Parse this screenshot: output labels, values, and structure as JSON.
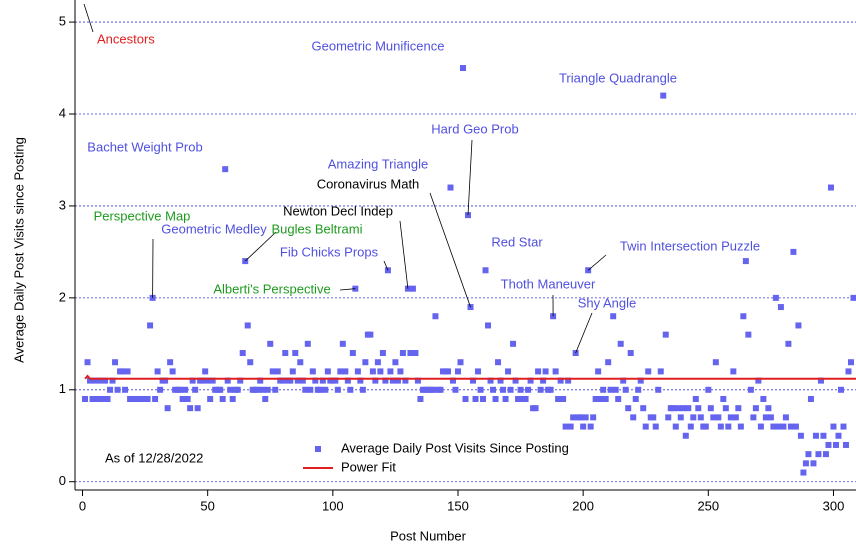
{
  "chart_data": {
    "type": "scatter",
    "xlabel": "Post Number",
    "ylabel": "Average Daily Post Visits since Posting",
    "note": "As of 12/28/2022",
    "xlim": [
      -3,
      309
    ],
    "ylim": [
      -0.09,
      5.24
    ],
    "xticks": [
      0,
      50,
      100,
      150,
      200,
      250,
      300
    ],
    "yticks": [
      0,
      1,
      2,
      3,
      4,
      5
    ],
    "grid": true,
    "x": [
      1,
      2,
      3,
      4,
      5,
      6,
      7,
      8,
      9,
      10,
      11,
      12,
      13,
      14,
      15,
      16,
      17,
      18,
      19,
      20,
      21,
      22,
      23,
      24,
      25,
      26,
      27,
      28,
      29,
      30,
      31,
      32,
      33,
      34,
      35,
      36,
      37,
      38,
      39,
      40,
      41,
      42,
      43,
      44,
      45,
      46,
      47,
      48,
      49,
      50,
      51,
      52,
      53,
      54,
      55,
      56,
      57,
      58,
      59,
      60,
      61,
      62,
      63,
      64,
      65,
      66,
      67,
      68,
      69,
      70,
      71,
      72,
      73,
      74,
      75,
      76,
      77,
      78,
      79,
      80,
      81,
      82,
      83,
      84,
      85,
      86,
      87,
      88,
      89,
      90,
      91,
      92,
      93,
      94,
      95,
      96,
      97,
      98,
      99,
      100,
      101,
      102,
      103,
      104,
      105,
      106,
      107,
      108,
      109,
      110,
      111,
      112,
      113,
      114,
      115,
      116,
      117,
      118,
      119,
      120,
      121,
      122,
      123,
      124,
      125,
      126,
      127,
      128,
      129,
      130,
      131,
      132,
      133,
      134,
      135,
      136,
      137,
      138,
      139,
      140,
      141,
      142,
      143,
      144,
      145,
      146,
      147,
      148,
      149,
      150,
      151,
      152,
      153,
      154,
      155,
      156,
      157,
      158,
      159,
      160,
      161,
      162,
      163,
      164,
      165,
      166,
      167,
      168,
      169,
      170,
      171,
      172,
      173,
      174,
      175,
      176,
      177,
      178,
      179,
      180,
      181,
      182,
      183,
      184,
      185,
      186,
      187,
      188,
      189,
      190,
      191,
      192,
      193,
      194,
      195,
      196,
      197,
      198,
      199,
      200,
      201,
      202,
      203,
      204,
      205,
      206,
      207,
      208,
      209,
      210,
      211,
      212,
      213,
      214,
      215,
      216,
      217,
      218,
      219,
      220,
      221,
      222,
      223,
      224,
      225,
      226,
      227,
      228,
      229,
      230,
      231,
      232,
      233,
      234,
      235,
      236,
      237,
      238,
      239,
      240,
      241,
      242,
      243,
      244,
      245,
      246,
      247,
      248,
      249,
      250,
      251,
      252,
      253,
      254,
      255,
      256,
      257,
      258,
      259,
      260,
      261,
      262,
      263,
      264,
      265,
      266,
      267,
      268,
      269,
      270,
      271,
      272,
      273,
      274,
      275,
      276,
      277,
      278,
      279,
      280,
      281,
      282,
      283,
      284,
      285,
      286,
      287,
      288,
      289,
      290,
      291,
      292,
      293,
      294,
      295,
      296,
      297,
      298,
      299,
      300,
      301,
      302,
      303,
      304,
      305,
      306,
      307,
      308
    ],
    "series": [
      {
        "name": "Average Daily Post Visits Since Posting",
        "color": "#6464ee",
        "marker": "square",
        "values": [
          0.9,
          1.3,
          1.1,
          0.9,
          1.1,
          0.9,
          1.1,
          0.9,
          1.1,
          0.9,
          1.0,
          1.1,
          1.3,
          1.0,
          1.2,
          1.2,
          1.0,
          1.2,
          0.9,
          0.9,
          0.9,
          0.9,
          0.9,
          0.9,
          0.9,
          0.9,
          1.7,
          2.0,
          0.9,
          1.2,
          1.0,
          1.1,
          1.1,
          0.8,
          1.3,
          1.2,
          1.0,
          1.0,
          1.0,
          0.9,
          1.0,
          0.9,
          0.8,
          1.1,
          1.0,
          0.8,
          1.1,
          1.1,
          1.2,
          1.1,
          0.9,
          1.1,
          1.0,
          1.0,
          1.0,
          0.9,
          3.4,
          1.1,
          1.0,
          0.9,
          1.0,
          1.0,
          1.1,
          1.4,
          2.4,
          1.7,
          1.3,
          1.0,
          1.0,
          1.0,
          1.1,
          1.0,
          0.9,
          1.0,
          1.5,
          1.2,
          1.0,
          1.2,
          1.1,
          1.1,
          1.4,
          1.1,
          1.1,
          1.2,
          1.4,
          1.1,
          1.3,
          1.1,
          1.0,
          1.5,
          1.0,
          1.2,
          1.1,
          1.0,
          1.0,
          1.1,
          1.0,
          1.2,
          1.1,
          1.1,
          1.1,
          1.0,
          1.2,
          1.5,
          1.2,
          1.1,
          1.0,
          1.4,
          2.1,
          1.2,
          1.1,
          1.0,
          1.3,
          1.6,
          1.6,
          1.2,
          1.1,
          1.3,
          1.2,
          1.4,
          1.1,
          2.3,
          1.2,
          1.1,
          1.3,
          1.1,
          1.2,
          1.4,
          1.1,
          2.1,
          1.4,
          2.1,
          1.4,
          1.1,
          0.9,
          1.0,
          1.0,
          1.0,
          1.0,
          1.0,
          1.8,
          1.0,
          1.0,
          1.2,
          1.2,
          1.2,
          3.2,
          1.1,
          1.0,
          1.2,
          1.3,
          4.5,
          0.9,
          2.9,
          1.9,
          1.1,
          0.9,
          1.2,
          1.0,
          0.9,
          2.3,
          1.7,
          1.1,
          1.0,
          0.9,
          1.3,
          1.1,
          1.0,
          0.9,
          1.2,
          1.0,
          1.5,
          1.1,
          0.9,
          1.0,
          0.9,
          0.9,
          1.0,
          1.1,
          0.8,
          0.8,
          1.2,
          1.0,
          1.1,
          1.2,
          1.0,
          1.0,
          1.8,
          1.2,
          0.9,
          1.1,
          0.9,
          0.6,
          1.1,
          0.6,
          0.7,
          1.4,
          0.7,
          0.7,
          0.6,
          0.7,
          2.3,
          0.6,
          0.7,
          0.9,
          1.2,
          0.9,
          1.0,
          0.9,
          1.3,
          1.0,
          1.8,
          1.0,
          0.9,
          1.5,
          1.1,
          1.0,
          0.8,
          1.4,
          0.7,
          0.9,
          1.0,
          1.1,
          0.8,
          0.6,
          1.2,
          0.7,
          0.7,
          0.6,
          1.0,
          1.2,
          4.2,
          1.6,
          0.7,
          0.8,
          0.8,
          0.6,
          0.8,
          0.7,
          0.8,
          0.5,
          0.8,
          0.6,
          0.7,
          0.9,
          0.8,
          0.7,
          0.6,
          0.6,
          1.0,
          0.8,
          0.7,
          1.3,
          0.7,
          0.6,
          0.9,
          0.8,
          0.6,
          0.7,
          1.2,
          0.7,
          0.8,
          0.6,
          1.8,
          2.4,
          1.6,
          1.0,
          0.7,
          0.8,
          1.1,
          0.6,
          0.9,
          0.7,
          0.8,
          0.7,
          0.6,
          2.0,
          0.6,
          1.9,
          0.6,
          0.7,
          1.5,
          0.6,
          2.5,
          0.6,
          1.7,
          0.5,
          0.1,
          0.2,
          0.3,
          0.9,
          0.2,
          0.5,
          0.3,
          1.1,
          0.5,
          0.3,
          0.4,
          3.2,
          0.6,
          0.4,
          0.5,
          1.0,
          0.6,
          0.4,
          1.2,
          1.3,
          2.0
        ]
      }
    ],
    "fit": {
      "name": "Power Fit",
      "color": "#e02020",
      "x": [
        1,
        2,
        3,
        5,
        10,
        50,
        100,
        200,
        309
      ],
      "values": [
        1.12,
        1.15,
        1.12,
        1.12,
        1.12,
        1.12,
        1.12,
        1.12,
        1.12
      ]
    },
    "annotations": [
      {
        "text": "Ancestors",
        "color": "#e02020"
      },
      {
        "text": "Geometric Munificence",
        "color": "#5050e0"
      },
      {
        "text": "Triangle Quadrangle",
        "color": "#5050e0"
      },
      {
        "text": "Bachet Weight Prob",
        "color": "#5050e0"
      },
      {
        "text": "Hard Geo Prob",
        "color": "#5050e0"
      },
      {
        "text": "Amazing Triangle",
        "color": "#5050e0"
      },
      {
        "text": "Coronavirus Math",
        "color": "#000000"
      },
      {
        "text": "Newton Decl Indep",
        "color": "#000000"
      },
      {
        "text": "Perspective Map",
        "color": "#1e9a1e"
      },
      {
        "text": "Geometric Medley",
        "color": "#5050e0"
      },
      {
        "text": "Bugles Beltrami",
        "color": "#1e9a1e"
      },
      {
        "text": "Fib Chicks Props",
        "color": "#5050e0"
      },
      {
        "text": "Alberti's Perspective",
        "color": "#1e9a1e"
      },
      {
        "text": "Red Star",
        "color": "#5050e0"
      },
      {
        "text": "Thoth Maneuver",
        "color": "#5050e0"
      },
      {
        "text": "Shy Angle",
        "color": "#5050e0"
      },
      {
        "text": "Twin Intersection Puzzle",
        "color": "#5050e0"
      }
    ]
  }
}
